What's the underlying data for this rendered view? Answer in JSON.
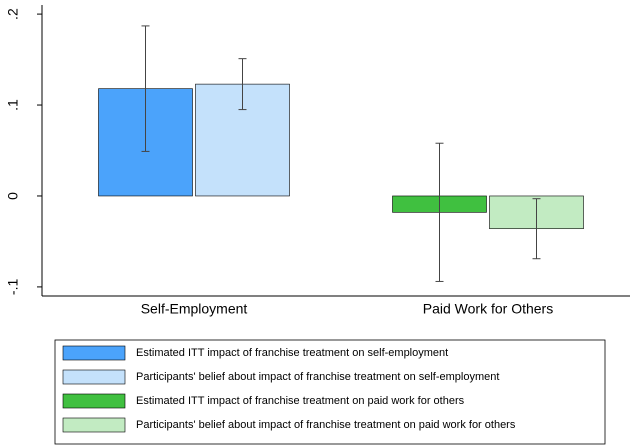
{
  "chart_data": {
    "type": "bar",
    "categories": [
      "Self-Employment",
      "Paid Work for Others"
    ],
    "series": [
      {
        "name": "Estimated ITT impact of franchise treatment on self-employment",
        "color": "#4ba3fb",
        "values": [
          0.118,
          null
        ],
        "errors": [
          0.069,
          null
        ]
      },
      {
        "name": "Participants' belief about impact of franchise treatment on self-employment",
        "color": "#c4e1fb",
        "values": [
          0.123,
          null
        ],
        "errors": [
          0.028,
          null
        ]
      },
      {
        "name": "Estimated ITT impact of franchise treatment on paid work for others",
        "color": "#40c040",
        "values": [
          null,
          -0.018
        ],
        "errors": [
          null,
          0.076
        ]
      },
      {
        "name": "Participants' belief about impact of franchise treatment on paid work for others",
        "color": "#c2ebc2",
        "values": [
          null,
          -0.036
        ],
        "errors": [
          null,
          0.033
        ]
      }
    ],
    "ylim": [
      -0.11,
      0.21
    ],
    "yticks": [
      {
        "value": -0.1,
        "label": "-.1"
      },
      0,
      {
        "value": 0.1,
        "label": ".1"
      },
      {
        "value": 0.2,
        "label": ".2"
      }
    ],
    "grid": false,
    "legend": "bottom"
  }
}
